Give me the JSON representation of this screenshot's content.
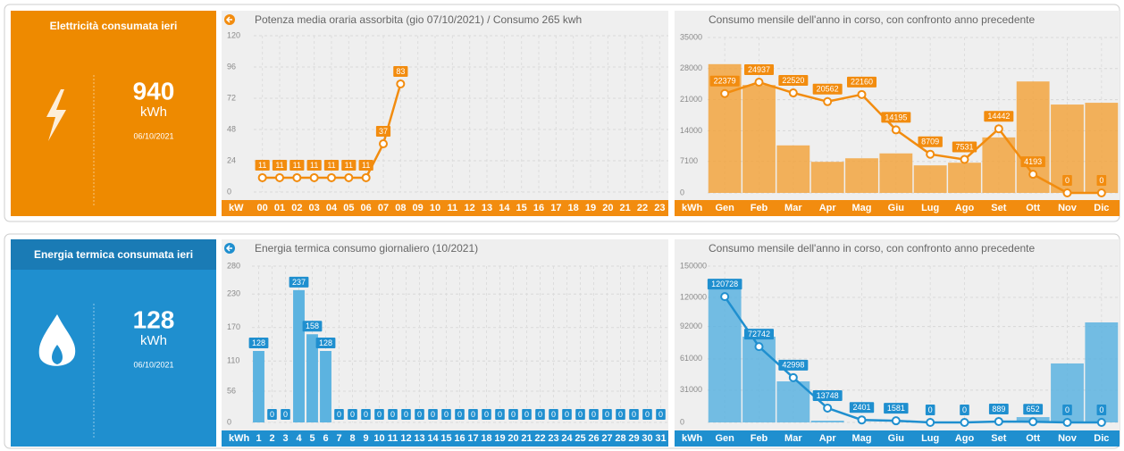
{
  "summaries": [
    {
      "title": "Elettricità consumata ieri",
      "value": 940,
      "unit": "kWh",
      "date": "06/10/2021",
      "color": "#ee8a00"
    },
    {
      "title": "Energia termica consumata ieri",
      "value": 128,
      "unit": "kWh",
      "date": "06/10/2021",
      "color": "#1f8fcf"
    }
  ],
  "chart_data": [
    {
      "type": "line",
      "title": "Potenza media oraria assorbita (gio 07/10/2021) / Consumo 265 kwh",
      "x_label": "kW",
      "categories": [
        "00",
        "01",
        "02",
        "03",
        "04",
        "05",
        "06",
        "07",
        "08",
        "09",
        "10",
        "11",
        "12",
        "13",
        "14",
        "15",
        "16",
        "17",
        "18",
        "19",
        "20",
        "21",
        "22",
        "23"
      ],
      "values": [
        11,
        11,
        11,
        11,
        11,
        11,
        11,
        37,
        83,
        null,
        null,
        null,
        null,
        null,
        null,
        null,
        null,
        null,
        null,
        null,
        null,
        null,
        null,
        null
      ],
      "color": "#f28c0f",
      "ylim": [
        0,
        120
      ],
      "yticks": [
        0,
        24,
        48,
        72,
        96,
        120
      ],
      "grid": true
    },
    {
      "type": "combo",
      "title": "Consumo mensile dell'anno in corso, con confronto anno precedente",
      "x_label": "kWh",
      "categories": [
        "Gen",
        "Feb",
        "Mar",
        "Apr",
        "Mag",
        "Giu",
        "Lug",
        "Ago",
        "Set",
        "Ott",
        "Nov",
        "Dic"
      ],
      "series": [
        {
          "kind": "bar",
          "color": "#f2a440",
          "values": [
            29000,
            24300,
            10700,
            7000,
            7800,
            8900,
            6200,
            6800,
            12500,
            25100,
            19900,
            20300
          ]
        },
        {
          "kind": "line",
          "color": "#f28c0f",
          "values": [
            22379,
            24937,
            22520,
            20562,
            22160,
            14195,
            8709,
            7531,
            14442,
            4193,
            0,
            0
          ]
        }
      ],
      "ylim": [
        0,
        35000
      ],
      "yticks": [
        0,
        7100,
        14000,
        21000,
        28000,
        35000
      ],
      "grid": true
    },
    {
      "type": "bar",
      "title": "Energia termica consumo giornaliero (10/2021)",
      "x_label": "kWh",
      "categories": [
        "1",
        "2",
        "3",
        "4",
        "5",
        "6",
        "7",
        "8",
        "9",
        "10",
        "11",
        "12",
        "13",
        "14",
        "15",
        "16",
        "17",
        "18",
        "19",
        "20",
        "21",
        "22",
        "23",
        "24",
        "25",
        "26",
        "27",
        "28",
        "29",
        "30",
        "31"
      ],
      "values": [
        128,
        0,
        0,
        237,
        158,
        128,
        0,
        0,
        0,
        0,
        0,
        0,
        0,
        0,
        0,
        0,
        0,
        0,
        0,
        0,
        0,
        0,
        0,
        0,
        0,
        0,
        0,
        0,
        0,
        0,
        0
      ],
      "color": "#5cb3e0",
      "ylim": [
        0,
        280
      ],
      "yticks": [
        0,
        56,
        110,
        170,
        230,
        280
      ],
      "grid": true
    },
    {
      "type": "combo",
      "title": "Consumo mensile dell'anno in corso, con confronto anno precedente",
      "x_label": "kWh",
      "categories": [
        "Gen",
        "Feb",
        "Mar",
        "Apr",
        "Mag",
        "Giu",
        "Lug",
        "Ago",
        "Set",
        "Ott",
        "Nov",
        "Dic"
      ],
      "series": [
        {
          "kind": "bar",
          "color": "#5cb3e0",
          "values": [
            127700,
            82300,
            39400,
            1700,
            0,
            0,
            0,
            0,
            0,
            5100,
            56600,
            96000
          ]
        },
        {
          "kind": "line",
          "color": "#1f8fcf",
          "values": [
            120728,
            72742,
            42998,
            13748,
            2401,
            1581,
            0,
            0,
            889,
            652,
            0,
            0
          ]
        }
      ],
      "ylim": [
        0,
        150000
      ],
      "yticks": [
        0,
        31000,
        61000,
        92000,
        120000,
        150000
      ],
      "grid": true
    }
  ]
}
